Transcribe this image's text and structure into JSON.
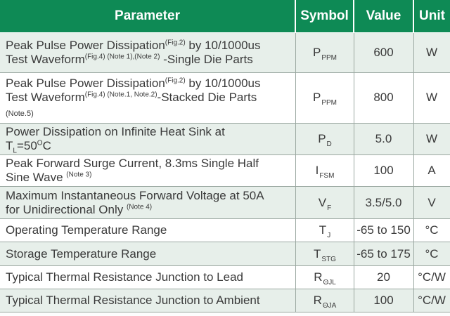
{
  "colors": {
    "header_bg": "#0e8a55",
    "header_text": "#ffffff",
    "row_shade": "#e7efea",
    "row_plain": "#ffffff",
    "border": "#9ba8a1",
    "text": "#3a3a3a"
  },
  "table": {
    "headers": [
      "Parameter",
      "Symbol",
      "Value",
      "Unit"
    ],
    "rows": [
      {
        "parameter": [
          {
            "t": "Peak Pulse Power Dissipation",
            "s": "n"
          },
          {
            "t": "(Fig.2)",
            "s": "sup"
          },
          {
            "t": " by 10/1000us",
            "s": "n"
          },
          {
            "s": "br"
          },
          {
            "t": "Test Waveform",
            "s": "n"
          },
          {
            "t": "(Fig.4) (Note 1),(Note 2)",
            "s": "sup"
          },
          {
            "t": " -Single Die Parts",
            "s": "n"
          }
        ],
        "symbol": {
          "base": "P",
          "sub": "PPM"
        },
        "value": "600",
        "unit": "W",
        "shaded": true
      },
      {
        "parameter": [
          {
            "t": "Peak Pulse Power Dissipation",
            "s": "n"
          },
          {
            "t": "(Fig.2)",
            "s": "sup"
          },
          {
            "t": " by 10/1000us",
            "s": "n"
          },
          {
            "s": "br"
          },
          {
            "t": "Test Waveform",
            "s": "n"
          },
          {
            "t": "(Fig.4) (Note.1, Note.2)",
            "s": "sup"
          },
          {
            "t": "-Stacked Die Parts",
            "s": "n"
          },
          {
            "s": "br"
          },
          {
            "t": "(Note.5)",
            "s": "sm"
          }
        ],
        "symbol": {
          "base": "P",
          "sub": "PPM"
        },
        "value": "800",
        "unit": "W",
        "shaded": false
      },
      {
        "parameter": [
          {
            "t": "Power Dissipation on Infinite Heat Sink at",
            "s": "n"
          },
          {
            "s": "br"
          },
          {
            "t": "T",
            "s": "n"
          },
          {
            "t": "L",
            "s": "sub"
          },
          {
            "t": "=50",
            "s": "n"
          },
          {
            "t": "O",
            "s": "sup"
          },
          {
            "t": "C",
            "s": "n"
          }
        ],
        "symbol": {
          "base": "P",
          "sub": "D"
        },
        "value": "5.0",
        "unit": "W",
        "shaded": true
      },
      {
        "parameter": [
          {
            "t": "Peak Forward Surge Current, 8.3ms Single Half",
            "s": "n"
          },
          {
            "s": "br"
          },
          {
            "t": "Sine Wave ",
            "s": "n"
          },
          {
            "t": "(Note 3)",
            "s": "sup"
          }
        ],
        "symbol": {
          "base": "I",
          "sub": "FSM"
        },
        "value": "100",
        "unit": "A",
        "shaded": false
      },
      {
        "parameter": [
          {
            "t": "Maximum Instantaneous Forward Voltage at 50A",
            "s": "n"
          },
          {
            "s": "br"
          },
          {
            "t": "for Unidirectional Only ",
            "s": "n"
          },
          {
            "t": "(Note 4)",
            "s": "sup"
          }
        ],
        "symbol": {
          "base": "V",
          "sub": "F"
        },
        "value": "3.5/5.0",
        "unit": "V",
        "shaded": true
      },
      {
        "parameter": [
          {
            "t": "Operating Temperature Range",
            "s": "n"
          }
        ],
        "symbol": {
          "base": "T",
          "sub": "J"
        },
        "value": "-65 to 150",
        "unit": "°C",
        "shaded": false
      },
      {
        "parameter": [
          {
            "t": "Storage Temperature Range",
            "s": "n"
          }
        ],
        "symbol": {
          "base": "T",
          "sub": "STG"
        },
        "value": "-65 to 175",
        "unit": "°C",
        "shaded": true
      },
      {
        "parameter": [
          {
            "t": "Typical Thermal Resistance Junction to Lead",
            "s": "n"
          }
        ],
        "symbol": {
          "base": "R",
          "sub": "ΘJL"
        },
        "value": "20",
        "unit": "°C/W",
        "shaded": false
      },
      {
        "parameter": [
          {
            "t": "Typical Thermal Resistance Junction to Ambient",
            "s": "n"
          }
        ],
        "symbol": {
          "base": "R",
          "sub": "ΘJA"
        },
        "value": "100",
        "unit": "°C/W",
        "shaded": true
      }
    ]
  }
}
